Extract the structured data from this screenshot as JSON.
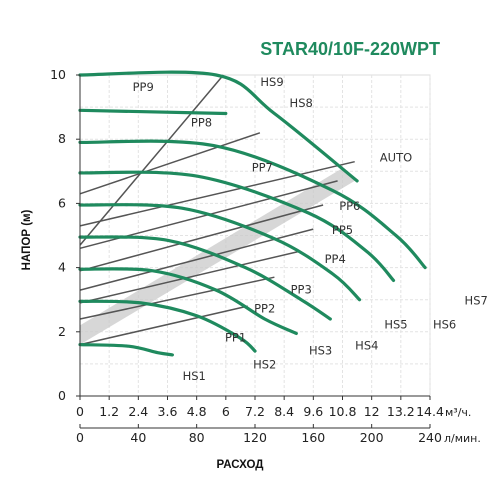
{
  "chart_data": {
    "type": "line",
    "title": "STAR40/10F-220WPT",
    "ylabel": "НАПОР (м)",
    "xlabel": "РАСХОД",
    "x_unit": "м³/ч.",
    "x2_unit": "л/мин.",
    "xlim": [
      0,
      14.4
    ],
    "ylim": [
      0,
      10
    ],
    "x_ticks": [
      "0",
      "1.2",
      "2.4",
      "3.6",
      "4.8",
      "6",
      "7.2",
      "8.4",
      "9.6",
      "10.8",
      "12",
      "13.2",
      "14.4"
    ],
    "x2_ticks": [
      "0",
      "40",
      "80",
      "120",
      "160",
      "200",
      "240"
    ],
    "y_ticks": [
      "0",
      "2",
      "4",
      "6",
      "8",
      "10"
    ],
    "grid": true,
    "colors": {
      "curve": "#1f8a5e",
      "pp_line": "#555555",
      "auto_band": "#c9c9c9",
      "title": "#1f8a5e"
    },
    "hs_curves": [
      {
        "name": "HS1",
        "points": [
          [
            0,
            1.6
          ],
          [
            2.0,
            1.55
          ],
          [
            3.2,
            1.35
          ],
          [
            3.8,
            1.28
          ]
        ]
      },
      {
        "name": "HS2",
        "points": [
          [
            0,
            2.95
          ],
          [
            2.5,
            2.9
          ],
          [
            4.8,
            2.5
          ],
          [
            6.6,
            1.8
          ],
          [
            7.2,
            1.4
          ]
        ]
      },
      {
        "name": "HS3",
        "points": [
          [
            0,
            3.95
          ],
          [
            3.0,
            3.9
          ],
          [
            5.6,
            3.3
          ],
          [
            7.6,
            2.4
          ],
          [
            8.9,
            1.95
          ]
        ]
      },
      {
        "name": "HS4",
        "points": [
          [
            0,
            4.95
          ],
          [
            3.6,
            4.85
          ],
          [
            6.8,
            4.0
          ],
          [
            9.1,
            3.0
          ],
          [
            10.3,
            2.4
          ]
        ]
      },
      {
        "name": "HS5",
        "points": [
          [
            0,
            5.95
          ],
          [
            4.2,
            5.85
          ],
          [
            8.0,
            4.9
          ],
          [
            10.4,
            3.8
          ],
          [
            11.5,
            3.0
          ]
        ]
      },
      {
        "name": "HS6",
        "points": [
          [
            0,
            6.95
          ],
          [
            4.8,
            6.85
          ],
          [
            9.4,
            5.7
          ],
          [
            11.8,
            4.5
          ],
          [
            12.9,
            3.6
          ]
        ]
      },
      {
        "name": "HS7",
        "points": [
          [
            0,
            7.9
          ],
          [
            5.5,
            7.8
          ],
          [
            10.4,
            6.4
          ],
          [
            13.0,
            5.0
          ],
          [
            14.2,
            4.0
          ]
        ]
      },
      {
        "name": "HS8",
        "points": [
          [
            0,
            8.9
          ],
          [
            6.0,
            8.8
          ]
        ]
      },
      {
        "name": "HS9",
        "points": [
          [
            0,
            10.0
          ],
          [
            5.6,
            10.0
          ],
          [
            8.0,
            8.8
          ],
          [
            11.4,
            6.7
          ]
        ]
      }
    ],
    "pp_lines": [
      {
        "name": "PP1",
        "points": [
          [
            0,
            1.6
          ],
          [
            6.9,
            2.8
          ]
        ]
      },
      {
        "name": "PP2",
        "points": [
          [
            0,
            2.4
          ],
          [
            8.0,
            3.7
          ]
        ]
      },
      {
        "name": "PP3",
        "points": [
          [
            0,
            2.9
          ],
          [
            9.0,
            4.5
          ]
        ]
      },
      {
        "name": "PP4",
        "points": [
          [
            0,
            3.3
          ],
          [
            9.6,
            5.2
          ]
        ]
      },
      {
        "name": "PP5",
        "points": [
          [
            0,
            3.9
          ],
          [
            10.0,
            5.95
          ]
        ]
      },
      {
        "name": "PP6",
        "points": [
          [
            0,
            4.6
          ],
          [
            10.6,
            6.7
          ]
        ]
      },
      {
        "name": "PP7",
        "points": [
          [
            0,
            5.3
          ],
          [
            11.3,
            7.3
          ]
        ]
      },
      {
        "name": "PP8",
        "points": [
          [
            0,
            6.3
          ],
          [
            7.4,
            8.2
          ]
        ]
      },
      {
        "name": "PP9",
        "points": [
          [
            0,
            4.7
          ],
          [
            5.9,
            10.0
          ]
        ]
      }
    ],
    "auto_band": {
      "name": "AUTO",
      "points": [
        [
          0,
          2.2
        ],
        [
          10.8,
          7.1
        ],
        [
          11.3,
          6.7
        ],
        [
          0,
          1.6
        ]
      ]
    },
    "labels": [
      {
        "text": "HS9",
        "x": 7.9,
        "y": 9.65
      },
      {
        "text": "HS8",
        "x": 9.1,
        "y": 9.0
      },
      {
        "text": "PP9",
        "x": 2.6,
        "y": 9.5
      },
      {
        "text": "PP8",
        "x": 5.0,
        "y": 8.4
      },
      {
        "text": "PP7",
        "x": 7.5,
        "y": 7.0
      },
      {
        "text": "AUTO",
        "x": 13.0,
        "y": 7.3
      },
      {
        "text": "PP6",
        "x": 11.1,
        "y": 5.8
      },
      {
        "text": "PP5",
        "x": 10.8,
        "y": 5.05
      },
      {
        "text": "PP4",
        "x": 10.5,
        "y": 4.15
      },
      {
        "text": "PP3",
        "x": 9.1,
        "y": 3.2
      },
      {
        "text": "PP2",
        "x": 7.6,
        "y": 2.6
      },
      {
        "text": "PP1",
        "x": 6.4,
        "y": 1.7
      },
      {
        "text": "HS7",
        "x": 16.3,
        "y": 2.85
      },
      {
        "text": "HS6",
        "x": 15.0,
        "y": 2.1
      },
      {
        "text": "HS5",
        "x": 13.0,
        "y": 2.1
      },
      {
        "text": "HS4",
        "x": 11.8,
        "y": 1.45
      },
      {
        "text": "HS3",
        "x": 9.9,
        "y": 1.3
      },
      {
        "text": "HS2",
        "x": 7.6,
        "y": 0.85
      },
      {
        "text": "HS1",
        "x": 4.7,
        "y": 0.5
      }
    ]
  }
}
